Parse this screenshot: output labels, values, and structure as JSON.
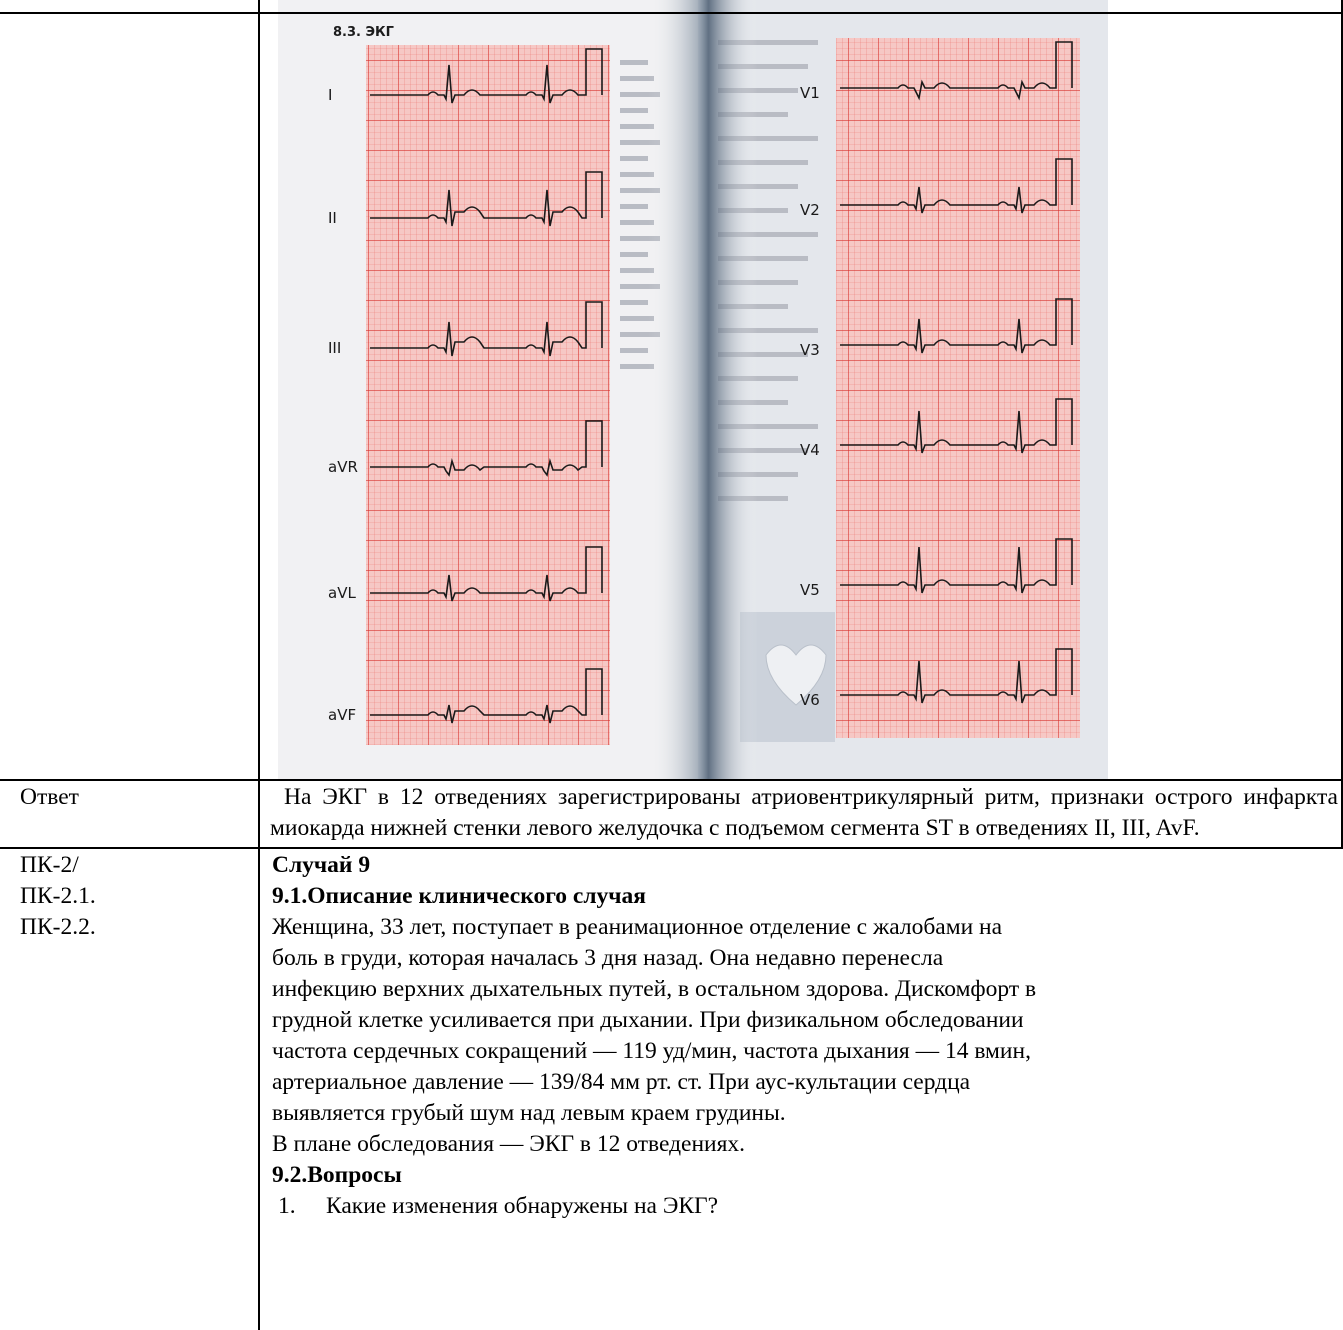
{
  "ecg_figure": {
    "caption": "8.3.  ЭКГ",
    "left_leads": [
      "I",
      "II",
      "III",
      "aVR",
      "aVL",
      "aVF"
    ],
    "right_leads": [
      "V1",
      "V2",
      "V3",
      "V4",
      "V5",
      "V6"
    ],
    "grid_color": "#e8413f",
    "paper_color": "#f7c9c6"
  },
  "answer_row": {
    "label": "Ответ",
    "text": "На ЭКГ в 12 отведениях зарегистрированы атриовентрикулярный ритм, признаки острого инфаркта миокарда нижней стенки левого желудочка с подъемом сегмента ST в отведениях II, III, AvF."
  },
  "case_row": {
    "competencies": [
      "ПК-2/",
      "ПК-2.1.",
      "ПК-2.2."
    ],
    "case_title": "Случай 9",
    "description_heading": "9.1.Описание клинического случая",
    "description_lines": [
      "Женщина, 33 лет, поступает в реанимационное отделение с жалобами на",
      "боль в груди, которая началась 3 дня назад. Она недавно перенесла",
      "инфекцию верхних дыхательных путей, в остальном здорова. Дискомфорт в",
      "грудной клетке усиливается при дыхании. При физикальном обследовании",
      "частота сердечных сокращений — 119 уд/мин, частота дыхания — 14 вмин,",
      "артериальное давление — 139/84 мм рт. ст. При аус-культации сердца",
      "выявляется грубый шум над левым краем грудины."
    ],
    "plan": "В плане обследования — ЭКГ в 12 отведениях.",
    "questions_heading": "9.2.Вопросы",
    "questions": [
      {
        "num": "1.",
        "text": "Какие изменения обнаружены на ЭКГ?"
      }
    ]
  }
}
